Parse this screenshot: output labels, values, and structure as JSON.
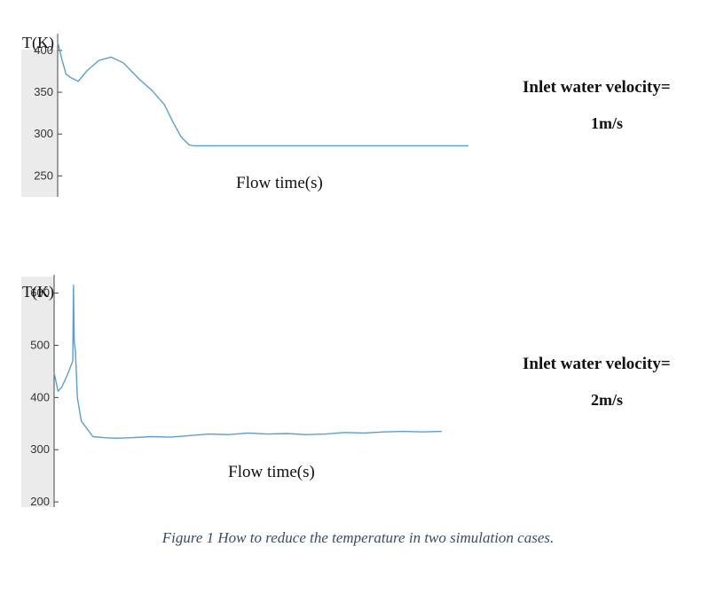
{
  "chart_data": [
    {
      "type": "line",
      "ylabel": "T(K)",
      "xlabel": "Flow time(s)",
      "ylim": [
        225,
        420
      ],
      "yticks": [
        250,
        300,
        350,
        400
      ],
      "grid": false,
      "series_color": "#5a9fd4",
      "x": [
        0.0,
        0.01,
        0.02,
        0.03,
        0.05,
        0.07,
        0.1,
        0.13,
        0.16,
        0.2,
        0.23,
        0.26,
        0.28,
        0.3,
        0.32,
        0.33,
        0.35,
        0.4,
        0.5,
        0.7,
        1.0
      ],
      "series": [
        {
          "values": [
            410,
            390,
            372,
            368,
            363,
            375,
            388,
            392,
            385,
            365,
            352,
            335,
            315,
            297,
            287,
            286,
            286,
            286,
            286,
            286,
            286
          ]
        }
      ],
      "annotation": {
        "title": "Inlet water velocity=",
        "value": "1m/s"
      }
    },
    {
      "type": "line",
      "ylabel": "T(K)",
      "xlabel": "Flow time(s)",
      "ylim": [
        190,
        635
      ],
      "yticks": [
        200,
        300,
        400,
        500,
        600
      ],
      "grid": false,
      "series_color": "#5a9fd4",
      "x": [
        0.0,
        0.01,
        0.02,
        0.035,
        0.048,
        0.05,
        0.052,
        0.055,
        0.06,
        0.07,
        0.085,
        0.1,
        0.13,
        0.16,
        0.2,
        0.25,
        0.3,
        0.35,
        0.4,
        0.45,
        0.5,
        0.55,
        0.6,
        0.65,
        0.7,
        0.75,
        0.8,
        0.85,
        0.9,
        0.95,
        1.0
      ],
      "series": [
        {
          "values": [
            448,
            412,
            420,
            445,
            470,
            615,
            505,
            490,
            400,
            355,
            340,
            325,
            323,
            322,
            323,
            325,
            324,
            327,
            330,
            329,
            332,
            330,
            331,
            329,
            330,
            333,
            332,
            334,
            335,
            334,
            335
          ]
        }
      ],
      "annotation": {
        "title": "Inlet water velocity=",
        "value": "2m/s"
      }
    }
  ],
  "caption": "Figure 1 How to reduce the temperature in two simulation cases."
}
